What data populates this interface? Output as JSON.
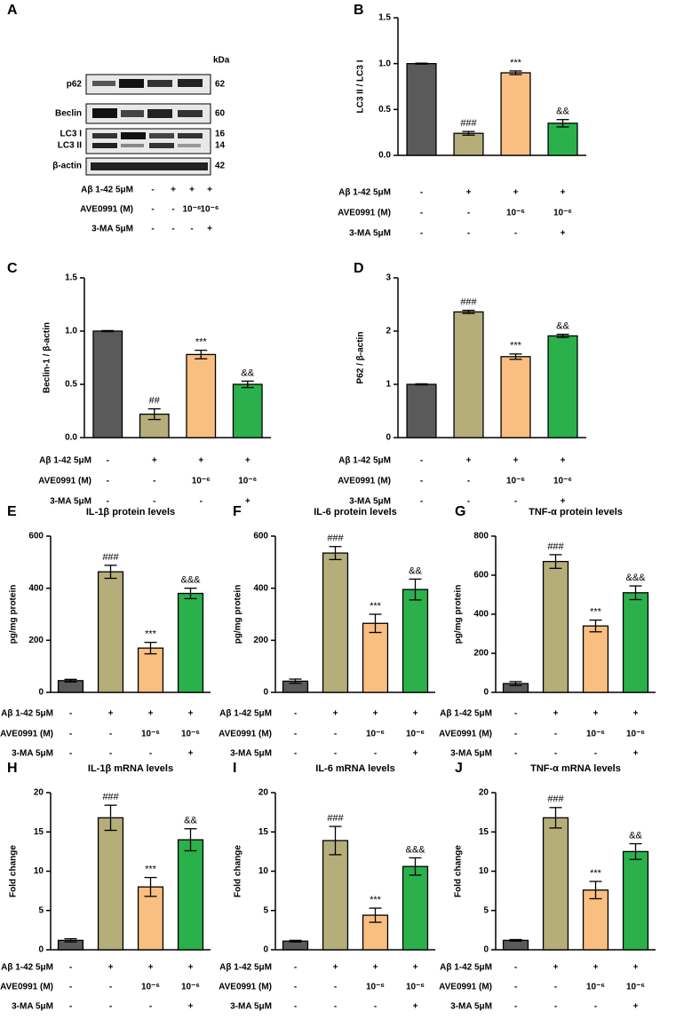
{
  "blot": {
    "panel": "A",
    "unit": "kDa",
    "rows": [
      {
        "label": "p62",
        "kda": 62
      },
      {
        "label": "Beclin",
        "kda": 60
      },
      {
        "label": "LC3 I",
        "kda": 16
      },
      {
        "label": "LC3 II",
        "kda": 14
      },
      {
        "label": "β-actin",
        "kda": 42
      }
    ],
    "conditions": [
      {
        "label": "Aβ 1-42 5μM",
        "values": [
          "-",
          "+",
          "+",
          "+"
        ]
      },
      {
        "label": "AVE0991 (M)",
        "values": [
          "-",
          "-",
          "10⁻⁶",
          "10⁻⁶"
        ]
      },
      {
        "label": "3-MA 5μM",
        "values": [
          "-",
          "-",
          "-",
          "+"
        ]
      }
    ]
  },
  "chart_data": [
    {
      "type": "bar",
      "panel": "B",
      "y_label": "LC3 II / LC3 I",
      "ylim": [
        0,
        1.5
      ],
      "yticks": [
        {
          "value": 0,
          "label": "0.0"
        },
        0.5,
        {
          "value": 1,
          "label": "1.0"
        },
        1.5
      ],
      "conditions": [
        {
          "label": "Aβ 1-42 5μM",
          "values": [
            "-",
            "+",
            "+",
            "+"
          ]
        },
        {
          "label": "AVE0991 (M)",
          "values": [
            "-",
            "-",
            "10⁻⁶",
            "10⁻⁶"
          ]
        },
        {
          "label": "3-MA 5μM",
          "values": [
            "-",
            "-",
            "-",
            "+"
          ]
        }
      ],
      "values": [
        1.0,
        0.24,
        0.9,
        0.35
      ],
      "errors": [
        0.005,
        0.02,
        0.02,
        0.04
      ],
      "annotations": [
        null,
        "###",
        "***",
        "&&"
      ],
      "colors": [
        "#5a5a5a",
        "#b5ad7a",
        "#f9bf80",
        "#2bb14c"
      ]
    },
    {
      "type": "bar",
      "panel": "C",
      "y_label": "Beclin-1 / β-actin",
      "ylim": [
        0,
        1.5
      ],
      "yticks": [
        {
          "value": 0,
          "label": "0.0"
        },
        0.5,
        {
          "value": 1,
          "label": "1.0"
        },
        1.5
      ],
      "conditions": [
        {
          "label": "Aβ 1-42 5μM",
          "values": [
            "-",
            "+",
            "+",
            "+"
          ]
        },
        {
          "label": "AVE0991 (M)",
          "values": [
            "-",
            "-",
            "10⁻⁶",
            "10⁻⁶"
          ]
        },
        {
          "label": "3-MA 5μM",
          "values": [
            "-",
            "-",
            "-",
            "+"
          ]
        }
      ],
      "values": [
        1.0,
        0.22,
        0.78,
        0.5
      ],
      "errors": [
        0.005,
        0.05,
        0.04,
        0.03
      ],
      "annotations": [
        null,
        "##",
        "***",
        "&&"
      ],
      "colors": [
        "#5a5a5a",
        "#b5ad7a",
        "#f9bf80",
        "#2bb14c"
      ]
    },
    {
      "type": "bar",
      "panel": "D",
      "y_label": "P62 / β-actin",
      "ylim": [
        0,
        3
      ],
      "yticks": [
        0,
        1,
        2,
        3
      ],
      "conditions": [
        {
          "label": "Aβ 1-42 5μM",
          "values": [
            "-",
            "+",
            "+",
            "+"
          ]
        },
        {
          "label": "AVE0991 (M)",
          "values": [
            "-",
            "-",
            "10⁻⁶",
            "10⁻⁶"
          ]
        },
        {
          "label": "3-MA 5μM",
          "values": [
            "-",
            "-",
            "-",
            "+"
          ]
        }
      ],
      "values": [
        1.0,
        2.36,
        1.52,
        1.91
      ],
      "errors": [
        0.01,
        0.03,
        0.05,
        0.03
      ],
      "annotations": [
        null,
        "###",
        "***",
        "&&"
      ],
      "colors": [
        "#5a5a5a",
        "#b5ad7a",
        "#f9bf80",
        "#2bb14c"
      ]
    },
    {
      "type": "bar",
      "panel": "E",
      "title": "IL-1β protein levels",
      "y_label": "pg/mg protein",
      "ylim": [
        0,
        600
      ],
      "yticks": [
        0,
        200,
        400,
        600
      ],
      "conditions": [
        {
          "label": "Aβ 1-42 5μM",
          "values": [
            "-",
            "+",
            "+",
            "+"
          ]
        },
        {
          "label": "AVE0991 (M)",
          "values": [
            "-",
            "-",
            "10⁻⁶",
            "10⁻⁶"
          ]
        },
        {
          "label": "3-MA 5μM",
          "values": [
            "-",
            "-",
            "-",
            "+"
          ]
        }
      ],
      "values": [
        45,
        463,
        170,
        380
      ],
      "errors": [
        5,
        25,
        22,
        20
      ],
      "annotations": [
        null,
        "###",
        "***",
        "&&&"
      ],
      "colors": [
        "#5a5a5a",
        "#b5ad7a",
        "#f9bf80",
        "#2bb14c"
      ]
    },
    {
      "type": "bar",
      "panel": "F",
      "title": "IL-6 protein levels",
      "y_label": "pg/mg protein",
      "ylim": [
        0,
        600
      ],
      "yticks": [
        0,
        200,
        400,
        600
      ],
      "conditions": [
        {
          "label": "Aβ 1-42 5μM",
          "values": [
            "-",
            "+",
            "+",
            "+"
          ]
        },
        {
          "label": "AVE0991 (M)",
          "values": [
            "-",
            "-",
            "10⁻⁶",
            "10⁻⁶"
          ]
        },
        {
          "label": "3-MA 5μM",
          "values": [
            "-",
            "-",
            "-",
            "+"
          ]
        }
      ],
      "values": [
        43,
        535,
        265,
        395
      ],
      "errors": [
        8,
        25,
        35,
        40
      ],
      "annotations": [
        null,
        "###",
        "***",
        "&&"
      ],
      "colors": [
        "#5a5a5a",
        "#b5ad7a",
        "#f9bf80",
        "#2bb14c"
      ]
    },
    {
      "type": "bar",
      "panel": "G",
      "title": "TNF-α protein levels",
      "y_label": "pg/mg protein",
      "ylim": [
        0,
        800
      ],
      "yticks": [
        0,
        200,
        400,
        600,
        800
      ],
      "conditions": [
        {
          "label": "Aβ 1-42 5μM",
          "values": [
            "-",
            "+",
            "+",
            "+"
          ]
        },
        {
          "label": "AVE0991 (M)",
          "values": [
            "-",
            "-",
            "10⁻⁶",
            "10⁻⁶"
          ]
        },
        {
          "label": "3-MA 5μM",
          "values": [
            "-",
            "-",
            "-",
            "+"
          ]
        }
      ],
      "values": [
        45,
        670,
        340,
        510
      ],
      "errors": [
        10,
        35,
        30,
        35
      ],
      "annotations": [
        null,
        "###",
        "***",
        "&&&"
      ],
      "colors": [
        "#5a5a5a",
        "#b5ad7a",
        "#f9bf80",
        "#2bb14c"
      ]
    },
    {
      "type": "bar",
      "panel": "H",
      "title": "IL-1β mRNA levels",
      "y_label": "Fold change",
      "ylim": [
        0,
        20
      ],
      "yticks": [
        0,
        5,
        10,
        15,
        20
      ],
      "conditions": [
        {
          "label": "Aβ 1-42 5μM",
          "values": [
            "-",
            "+",
            "+",
            "+"
          ]
        },
        {
          "label": "AVE0991 (M)",
          "values": [
            "-",
            "-",
            "10⁻⁶",
            "10⁻⁶"
          ]
        },
        {
          "label": "3-MA 5μM",
          "values": [
            "-",
            "-",
            "-",
            "+"
          ]
        }
      ],
      "values": [
        1.2,
        16.8,
        8.0,
        14.0
      ],
      "errors": [
        0.2,
        1.6,
        1.2,
        1.4
      ],
      "annotations": [
        null,
        "###",
        "***",
        "&&"
      ],
      "colors": [
        "#5a5a5a",
        "#b5ad7a",
        "#f9bf80",
        "#2bb14c"
      ]
    },
    {
      "type": "bar",
      "panel": "I",
      "title": "IL-6 mRNA levels",
      "y_label": "Fold change",
      "ylim": [
        0,
        20
      ],
      "yticks": [
        0,
        5,
        10,
        15,
        20
      ],
      "conditions": [
        {
          "label": "Aβ 1-42 5μM",
          "values": [
            "-",
            "+",
            "+",
            "+"
          ]
        },
        {
          "label": "AVE0991 (M)",
          "values": [
            "-",
            "-",
            "10⁻⁶",
            "10⁻⁶"
          ]
        },
        {
          "label": "3-MA 5μM",
          "values": [
            "-",
            "-",
            "-",
            "+"
          ]
        }
      ],
      "values": [
        1.1,
        13.9,
        4.4,
        10.6
      ],
      "errors": [
        0.1,
        1.8,
        0.9,
        1.1
      ],
      "annotations": [
        null,
        "###",
        "***",
        "&&&"
      ],
      "colors": [
        "#5a5a5a",
        "#b5ad7a",
        "#f9bf80",
        "#2bb14c"
      ]
    },
    {
      "type": "bar",
      "panel": "J",
      "title": "TNF-α mRNA levels",
      "y_label": "Fold change",
      "ylim": [
        0,
        20
      ],
      "yticks": [
        0,
        5,
        10,
        15,
        20
      ],
      "conditions": [
        {
          "label": "Aβ 1-42 5μM",
          "values": [
            "-",
            "+",
            "+",
            "+"
          ]
        },
        {
          "label": "AVE0991 (M)",
          "values": [
            "-",
            "-",
            "10⁻⁶",
            "10⁻⁶"
          ]
        },
        {
          "label": "3-MA 5μM",
          "values": [
            "-",
            "-",
            "-",
            "+"
          ]
        }
      ],
      "values": [
        1.2,
        16.8,
        7.6,
        12.5
      ],
      "errors": [
        0.1,
        1.3,
        1.1,
        1.0
      ],
      "annotations": [
        null,
        "###",
        "***",
        "&&"
      ],
      "colors": [
        "#5a5a5a",
        "#b5ad7a",
        "#f9bf80",
        "#2bb14c"
      ]
    }
  ]
}
